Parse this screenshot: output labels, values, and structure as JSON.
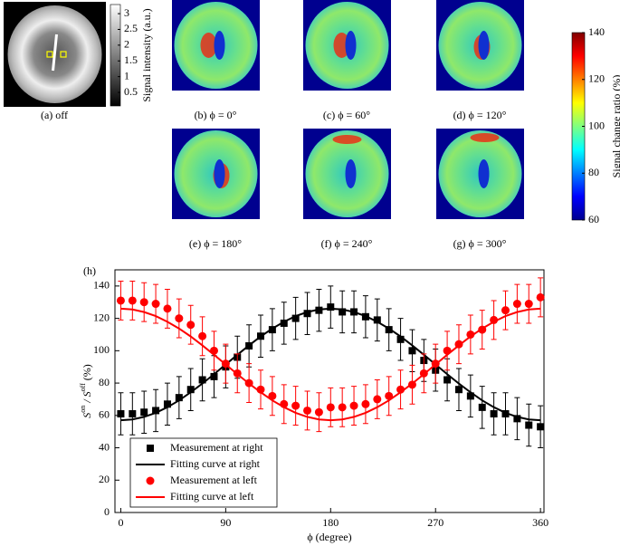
{
  "panels": [
    {
      "label": "(a)  off"
    },
    {
      "label": "(b) ϕ = 0°"
    },
    {
      "label": "(c) ϕ = 60°"
    },
    {
      "label": "(d) ϕ = 120°"
    },
    {
      "label": "(e) ϕ = 180°"
    },
    {
      "label": "(f) ϕ = 240°"
    },
    {
      "label": "(g) ϕ = 300°"
    }
  ],
  "colorbars": [
    {
      "label": "Signal intensity (a.u.)",
      "lim": [
        0.07,
        3.29
      ],
      "ticks": [
        0.5,
        1,
        1.5,
        2,
        2.5,
        3
      ]
    },
    {
      "label": "Signal change ratio (%)",
      "lim": [
        60,
        140
      ],
      "ticks": [
        60,
        80,
        100,
        120,
        140
      ]
    }
  ],
  "chart_data": {
    "type": "scatter",
    "panel_label": "(h)",
    "xlabel": "ϕ (degree)",
    "ylabel_parts": [
      "S",
      "on",
      " / S",
      "off",
      " (%)"
    ],
    "xlim": [
      -5,
      363
    ],
    "xticks": [
      0,
      90,
      180,
      270,
      360
    ],
    "ylim": [
      0,
      150
    ],
    "yticks": [
      0,
      20,
      40,
      60,
      80,
      100,
      120,
      140
    ],
    "x": [
      0,
      10,
      20,
      30,
      40,
      50,
      60,
      70,
      80,
      90,
      100,
      110,
      120,
      130,
      140,
      150,
      160,
      170,
      180,
      190,
      200,
      210,
      220,
      230,
      240,
      250,
      260,
      270,
      280,
      290,
      300,
      310,
      320,
      330,
      340,
      350,
      360
    ],
    "series": [
      {
        "name": "Measurement at right",
        "kind": "marker",
        "marker": "square",
        "color": "#000000",
        "values": [
          61,
          61,
          62,
          63,
          67,
          71,
          76,
          82,
          84,
          90,
          96,
          103,
          109,
          113,
          117,
          120,
          123,
          125,
          127,
          124,
          124,
          121,
          119,
          113,
          107,
          100,
          94,
          88,
          82,
          76,
          72,
          65,
          61,
          61,
          58,
          54,
          53
        ],
        "errors": [
          13,
          13,
          13,
          13,
          13,
          13,
          13,
          13,
          13,
          13,
          13,
          13,
          13,
          13,
          13,
          13,
          13,
          13,
          13,
          13,
          13,
          13,
          13,
          13,
          13,
          13,
          13,
          13,
          13,
          13,
          13,
          13,
          13,
          13,
          13,
          13,
          13
        ]
      },
      {
        "name": "Fitting curve at right",
        "kind": "line",
        "color": "#000000",
        "values": [
          57.0,
          57.5,
          59.1,
          61.6,
          65.1,
          69.3,
          74.3,
          79.7,
          85.5,
          91.5,
          97.5,
          103.3,
          108.8,
          113.7,
          117.9,
          121.4,
          123.9,
          125.5,
          126.0,
          125.5,
          123.9,
          121.4,
          117.9,
          113.7,
          108.8,
          103.3,
          97.5,
          91.5,
          85.5,
          79.7,
          74.3,
          69.3,
          65.1,
          61.6,
          59.1,
          57.5,
          57.0
        ]
      },
      {
        "name": "Measurement at left",
        "kind": "marker",
        "marker": "circle",
        "color": "#ff0000",
        "values": [
          131,
          131,
          130,
          129,
          126,
          120,
          116,
          109,
          100,
          92,
          86,
          80,
          76,
          72,
          67,
          66,
          63,
          62,
          65,
          65,
          66,
          67,
          70,
          72,
          76,
          79,
          86,
          92,
          100,
          104,
          110,
          113,
          119,
          125,
          129,
          129,
          133
        ],
        "errors": [
          12,
          12,
          12,
          12,
          12,
          12,
          12,
          12,
          12,
          12,
          12,
          12,
          12,
          12,
          12,
          12,
          12,
          12,
          12,
          12,
          12,
          12,
          12,
          12,
          12,
          12,
          12,
          12,
          12,
          12,
          12,
          12,
          12,
          12,
          12,
          12,
          12
        ]
      },
      {
        "name": "Fitting curve at left",
        "kind": "line",
        "color": "#ff0000",
        "values": [
          126.0,
          125.5,
          123.9,
          121.4,
          117.9,
          113.7,
          108.8,
          103.3,
          97.5,
          91.5,
          85.5,
          79.7,
          74.3,
          69.3,
          65.1,
          61.6,
          59.1,
          57.5,
          57.0,
          57.5,
          59.1,
          61.6,
          65.1,
          69.3,
          74.3,
          79.7,
          85.5,
          91.5,
          97.5,
          103.3,
          108.8,
          113.7,
          117.9,
          121.4,
          123.9,
          125.5,
          126.0
        ]
      }
    ]
  }
}
